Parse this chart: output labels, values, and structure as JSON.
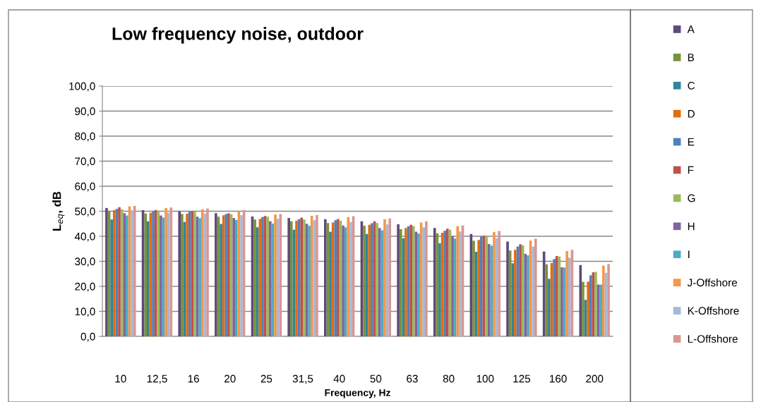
{
  "chart_data": {
    "type": "bar",
    "title": "Low frequency noise, outdoor",
    "xlabel": "Frequency, Hz",
    "ylabel": "L$_{eq}$, dB",
    "categories": [
      "10",
      "12,5",
      "16",
      "20",
      "25",
      "31,5",
      "40",
      "50",
      "63",
      "80",
      "100",
      "125",
      "160",
      "200"
    ],
    "series": [
      {
        "name": "A",
        "color": "#5f497a",
        "values": [
          51.3,
          50.4,
          50.0,
          49.2,
          47.9,
          47.3,
          46.8,
          46.0,
          44.8,
          43.3,
          40.9,
          37.9,
          33.9,
          28.5
        ]
      },
      {
        "name": "B",
        "color": "#77933c",
        "values": [
          50.0,
          49.1,
          48.9,
          47.8,
          46.7,
          46.0,
          45.3,
          44.2,
          42.8,
          41.2,
          38.2,
          34.3,
          28.8,
          21.8
        ]
      },
      {
        "name": "C",
        "color": "#31859c",
        "values": [
          46.7,
          46.0,
          45.7,
          44.9,
          43.6,
          42.6,
          41.8,
          40.9,
          39.2,
          37.2,
          33.8,
          29.2,
          23.0,
          14.6
        ]
      },
      {
        "name": "D",
        "color": "#e46c0a",
        "values": [
          50.4,
          49.4,
          49.0,
          48.4,
          47.0,
          46.2,
          45.5,
          44.6,
          43.3,
          41.4,
          38.5,
          34.6,
          29.3,
          21.9
        ]
      },
      {
        "name": "E",
        "color": "#4f81bd",
        "values": [
          50.9,
          50.0,
          50.0,
          48.9,
          47.7,
          46.8,
          46.4,
          45.2,
          44.0,
          42.2,
          39.9,
          35.9,
          30.9,
          24.4
        ]
      },
      {
        "name": "F",
        "color": "#c0504d",
        "values": [
          51.6,
          50.5,
          50.0,
          49.2,
          48.1,
          47.5,
          46.9,
          46.0,
          44.6,
          43.0,
          40.3,
          36.8,
          32.1,
          25.6
        ]
      },
      {
        "name": "G",
        "color": "#9bbb59",
        "values": [
          50.8,
          49.8,
          49.8,
          48.8,
          47.8,
          46.7,
          46.2,
          45.3,
          44.1,
          42.6,
          40.0,
          36.4,
          31.9,
          25.8
        ]
      },
      {
        "name": "H",
        "color": "#8064a2",
        "values": [
          49.2,
          48.3,
          47.8,
          47.3,
          46.0,
          45.0,
          44.3,
          43.3,
          41.8,
          40.0,
          36.9,
          33.0,
          27.6,
          20.7
        ]
      },
      {
        "name": "I",
        "color": "#4bacc6",
        "values": [
          48.3,
          47.5,
          47.2,
          46.5,
          45.1,
          44.2,
          43.5,
          42.4,
          41.1,
          39.1,
          36.3,
          32.4,
          27.5,
          20.7
        ]
      },
      {
        "name": "J-Offshore",
        "color": "#f79646",
        "values": [
          51.9,
          51.3,
          50.8,
          50.0,
          48.7,
          48.2,
          47.7,
          46.8,
          45.5,
          44.0,
          41.7,
          38.3,
          34.1,
          28.3
        ]
      },
      {
        "name": "K-Offshore",
        "color": "#a5b9d9",
        "values": [
          50.4,
          49.4,
          49.1,
          48.4,
          47.0,
          46.4,
          45.7,
          44.7,
          43.6,
          41.9,
          39.2,
          35.9,
          31.4,
          25.4
        ]
      },
      {
        "name": "L-Offshore",
        "color": "#d99694",
        "values": [
          52.1,
          51.5,
          51.1,
          50.5,
          48.9,
          48.5,
          48.0,
          47.1,
          46.0,
          44.3,
          42.1,
          39.0,
          34.6,
          28.9
        ]
      }
    ],
    "ylim": [
      0,
      100
    ],
    "yticks": [
      {
        "value": 0,
        "label": "0,0"
      },
      {
        "value": 10,
        "label": "10,0"
      },
      {
        "value": 20,
        "label": "20,0"
      },
      {
        "value": 30,
        "label": "30,0"
      },
      {
        "value": 40,
        "label": "40,0"
      },
      {
        "value": 50,
        "label": "50,0"
      },
      {
        "value": 60,
        "label": "60,0"
      },
      {
        "value": 70,
        "label": "70,0"
      },
      {
        "value": 80,
        "label": "80,0"
      },
      {
        "value": 90,
        "label": "90,0"
      },
      {
        "value": 100,
        "label": "100,0"
      }
    ],
    "grid": "y",
    "legend": "right"
  }
}
